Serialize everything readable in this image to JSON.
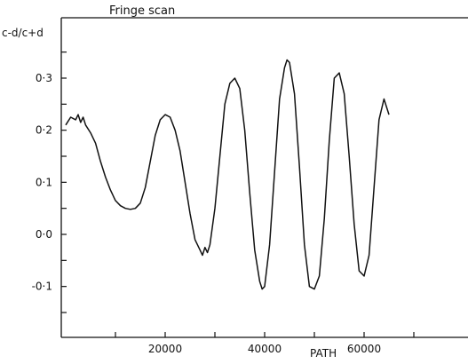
{
  "chart_data": {
    "type": "line",
    "title": "Fringe scan",
    "ylabel": "c-d/c+d",
    "xlabel": "PATH",
    "xlim": [
      0,
      75000
    ],
    "ylim": [
      -0.2,
      0.4
    ],
    "xticks": [
      10000,
      20000,
      30000,
      40000,
      50000,
      60000,
      70000
    ],
    "xtick_labels": [
      {
        "x": 20000,
        "label": "20000"
      },
      {
        "x": 40000,
        "label": "40000"
      },
      {
        "x": 60000,
        "label": "60000"
      }
    ],
    "yticks": [
      -0.15,
      -0.1,
      -0.05,
      0.0,
      0.05,
      0.1,
      0.15,
      0.2,
      0.25,
      0.3,
      0.35
    ],
    "ytick_labels": [
      {
        "y": 0.3,
        "label": "0·3"
      },
      {
        "y": 0.2,
        "label": "0·2"
      },
      {
        "y": 0.1,
        "label": "0·1"
      },
      {
        "y": 0.0,
        "label": "0·0"
      },
      {
        "y": -0.1,
        "label": "-0·1"
      }
    ],
    "grid": false,
    "series": [
      {
        "x": [
          0,
          1000,
          2000,
          2500,
          3000,
          3500,
          4000,
          5000,
          6000,
          7000,
          8000,
          9000,
          10000,
          11000,
          12000,
          13000,
          14000,
          15000,
          16000,
          17000,
          18000,
          19000,
          20000,
          21000,
          22000,
          23000,
          24000,
          25000,
          26000,
          27000,
          27500,
          28000,
          28500,
          29000,
          30000,
          31000,
          32000,
          33000,
          34000,
          35000,
          36000,
          37000,
          38000,
          39000,
          39500,
          40000,
          41000,
          42000,
          43000,
          44000,
          44500,
          45000,
          46000,
          47000,
          48000,
          49000,
          50000,
          51000,
          52000,
          53000,
          54000,
          55000,
          56000,
          57000,
          58000,
          59000,
          60000,
          61000,
          62000,
          63000,
          64000,
          65000
        ],
        "y": [
          0.21,
          0.225,
          0.22,
          0.23,
          0.215,
          0.225,
          0.21,
          0.195,
          0.175,
          0.14,
          0.11,
          0.085,
          0.065,
          0.055,
          0.05,
          0.048,
          0.05,
          0.06,
          0.09,
          0.14,
          0.19,
          0.22,
          0.23,
          0.225,
          0.2,
          0.16,
          0.1,
          0.04,
          -0.01,
          -0.03,
          -0.04,
          -0.025,
          -0.035,
          -0.02,
          0.05,
          0.15,
          0.25,
          0.29,
          0.3,
          0.28,
          0.2,
          0.08,
          -0.03,
          -0.09,
          -0.105,
          -0.1,
          -0.02,
          0.12,
          0.26,
          0.32,
          0.335,
          0.33,
          0.27,
          0.13,
          -0.02,
          -0.1,
          -0.105,
          -0.08,
          0.03,
          0.18,
          0.3,
          0.31,
          0.27,
          0.15,
          0.02,
          -0.07,
          -0.08,
          -0.04,
          0.09,
          0.22,
          0.26,
          0.23
        ]
      }
    ]
  }
}
